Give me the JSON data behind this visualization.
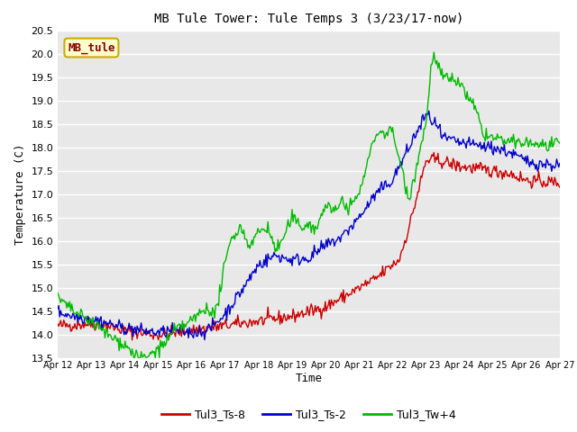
{
  "title": "MB Tule Tower: Tule Temps 3 (3/23/17-now)",
  "xlabel": "Time",
  "ylabel": "Temperature (C)",
  "ylim": [
    13.5,
    20.5
  ],
  "yticks": [
    13.5,
    14.0,
    14.5,
    15.0,
    15.5,
    16.0,
    16.5,
    17.0,
    17.5,
    18.0,
    18.5,
    19.0,
    19.5,
    20.0,
    20.5
  ],
  "xtick_labels": [
    "Apr 12",
    "Apr 13",
    "Apr 14",
    "Apr 15",
    "Apr 16",
    "Apr 17",
    "Apr 18",
    "Apr 19",
    "Apr 20",
    "Apr 21",
    "Apr 22",
    "Apr 23",
    "Apr 24",
    "Apr 25",
    "Apr 26",
    "Apr 27"
  ],
  "series_colors": [
    "#cc0000",
    "#0000cc",
    "#00bb00"
  ],
  "series_names": [
    "Tul3_Ts-8",
    "Tul3_Ts-2",
    "Tul3_Tw+4"
  ],
  "linewidth": 1.0,
  "watermark_text": "MB_tule",
  "watermark_bg": "#ffffcc",
  "watermark_border": "#ccaa00",
  "watermark_text_color": "#880000",
  "background_color": "#e8e8e8",
  "grid_color": "#ffffff",
  "title_fontsize": 10,
  "axis_fontsize": 9,
  "tick_fontsize": 8,
  "legend_fontsize": 9
}
